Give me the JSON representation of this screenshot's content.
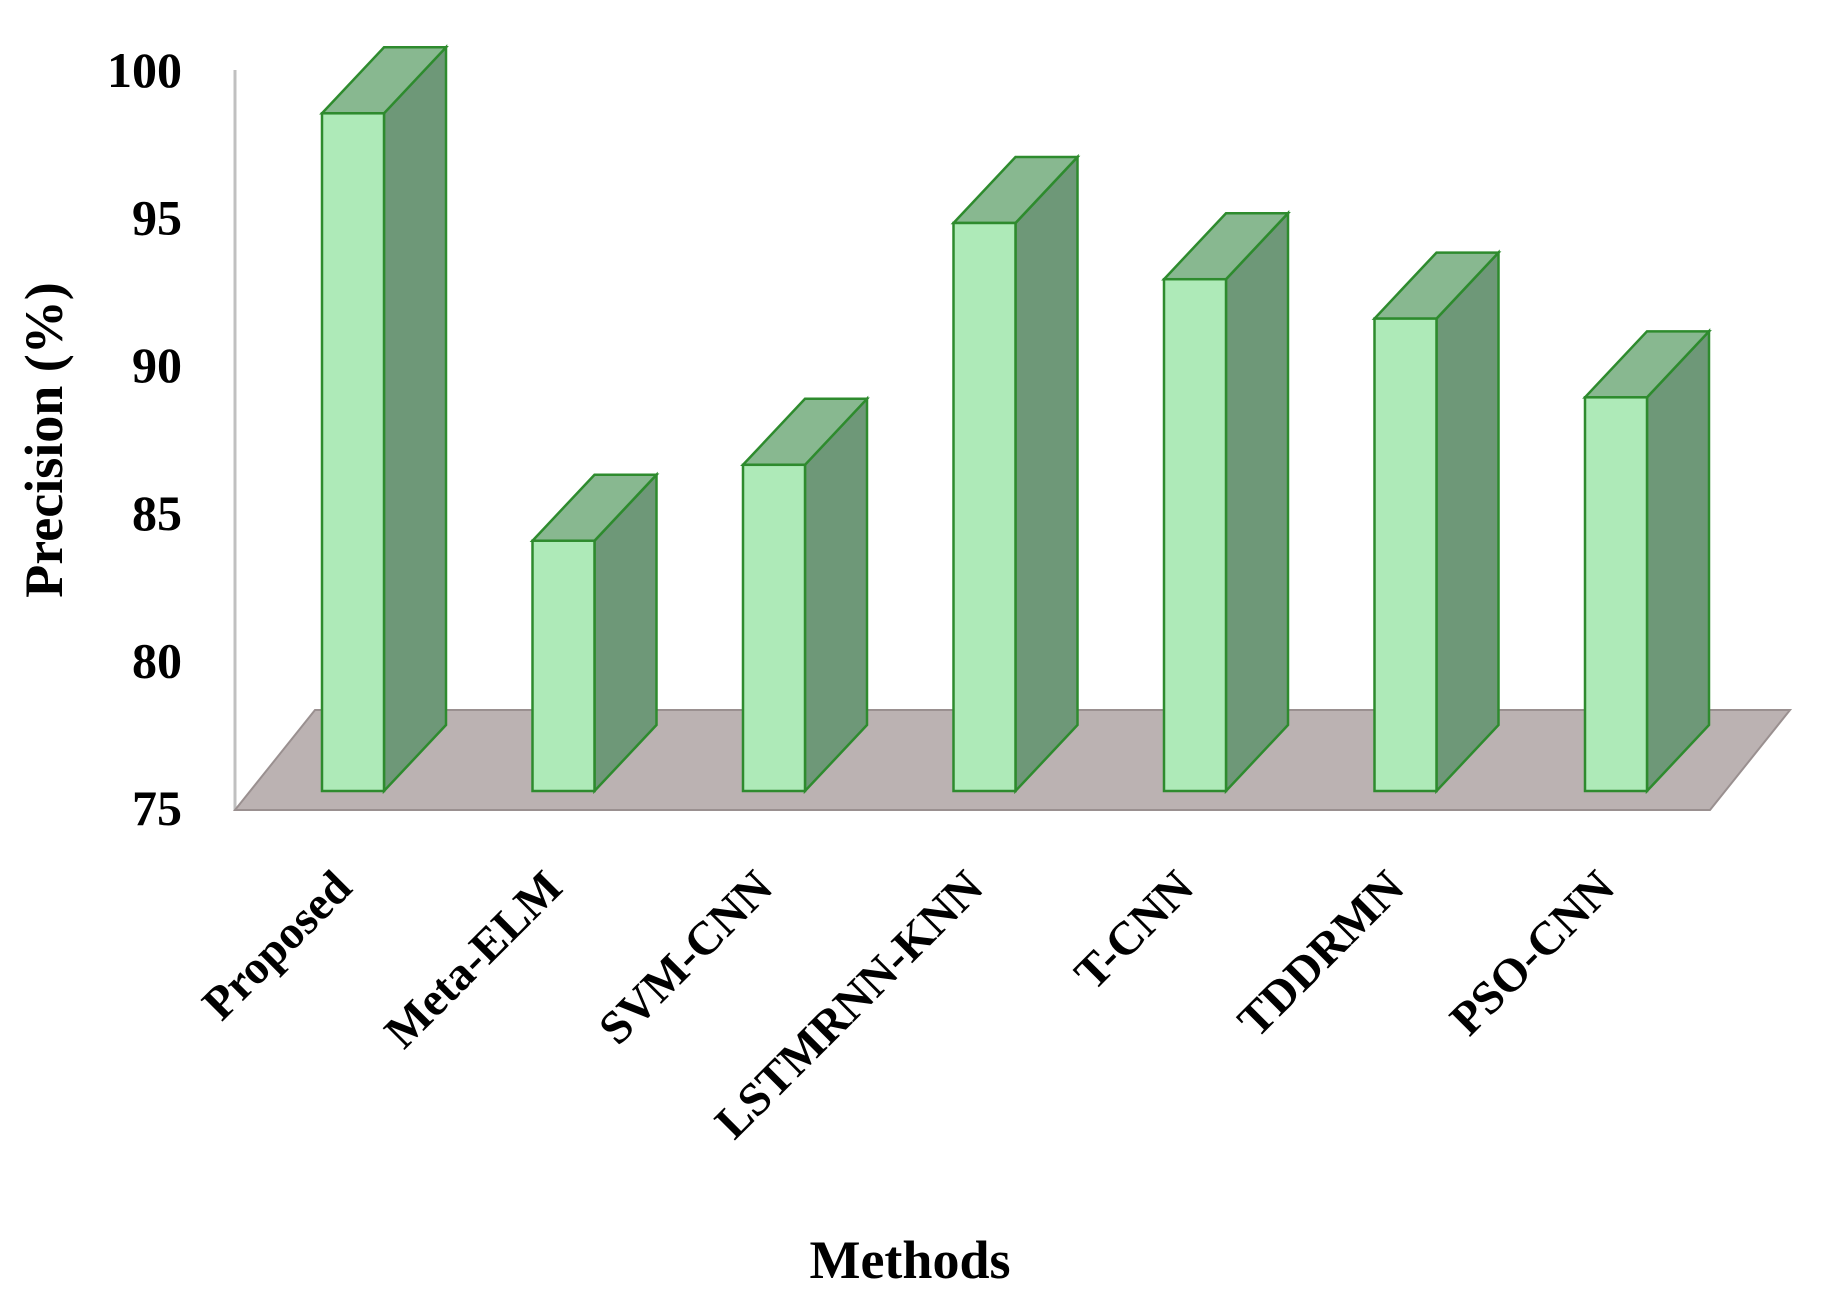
{
  "chart_data": {
    "type": "bar",
    "style": "3d-column",
    "categories": [
      "Proposed",
      "Meta-ELM",
      "SVM-CNN",
      "LSTMRNN-KNN",
      "T-CNN",
      "TDDRMN",
      "PSO-CNN"
    ],
    "values": [
      99.1,
      83.9,
      86.6,
      95.2,
      93.2,
      91.8,
      89.0
    ],
    "xlabel": "Methods",
    "ylabel": "Precision (%)",
    "ylim": [
      75,
      100
    ],
    "yticks": [
      "75",
      "80",
      "85",
      "90",
      "95",
      "100"
    ],
    "grid": false,
    "legend": "none",
    "colors": {
      "bar_front": "#aeeab8",
      "bar_side": "#6e9878",
      "bar_top": "#88b890",
      "bar_edge": "#2e8b2e",
      "floor": "#bbb2b2",
      "axis_wall": "#c0c0c0"
    }
  }
}
